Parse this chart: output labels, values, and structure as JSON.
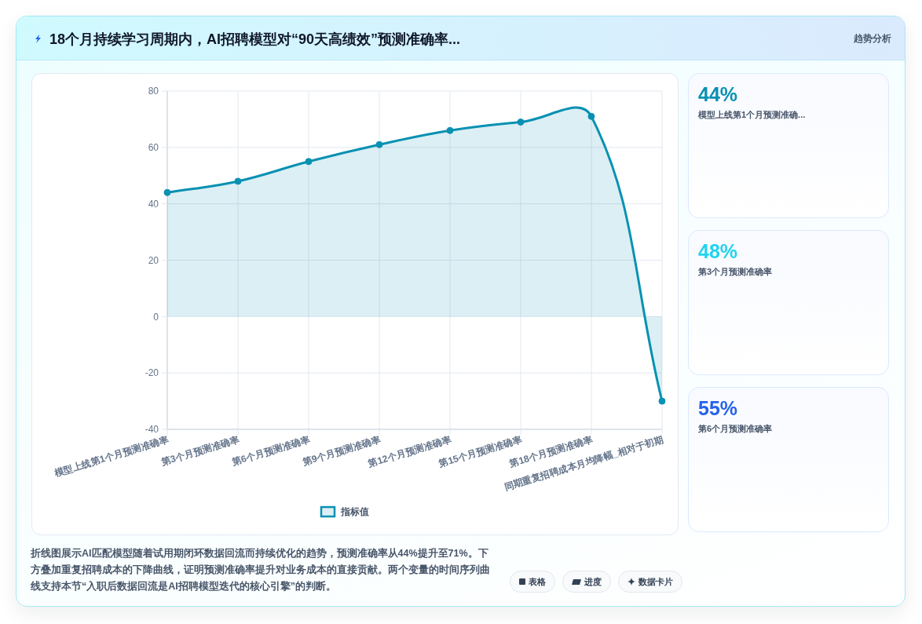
{
  "chart_data": [
    {
      "type": "area",
      "title": "18个月持续学习周期内，AI招聘模型对“90天高绩效”预测准确率...",
      "categories": [
        "模型上线第1个月预测准确率",
        "第3个月预测准确率",
        "第6个月预测准确率",
        "第9个月预测准确率",
        "第12个月预测准确率",
        "第15个月预测准确率",
        "第18个月预测准确率",
        "同期重复招聘成本月均降幅_相对于初期"
      ],
      "series": [
        {
          "name": "指标值",
          "color": "#0891b2",
          "values": [
            44,
            48,
            55,
            61,
            66,
            69,
            71,
            -30
          ]
        }
      ],
      "ylim": [
        -40,
        80
      ],
      "yticks": [
        -40,
        -20,
        0,
        20,
        40,
        60,
        80
      ],
      "grid": true,
      "legend": "bottom",
      "marker": "circle",
      "annotations": [
        "趋势分析",
        "折线图展示AI匹配模型随着试用期闭环数据回流而持续优化的趋势，预测准确率从44%提升至71%。下方叠加重复招聘成本的下降曲线，证明预测准确率提升对业务成本的直接贡献。两个变量的时间序列曲线支持本节“入职后数据回流是AI招聘模型迭代的核心引擎”的判断。",
        "表格",
        "进度",
        "数据卡片"
      ]
    },
    {
      "type": "other",
      "categories": [
        "模型上线第1个月预测准确...",
        "第3个月预测准确率",
        "第6个月预测准确率"
      ],
      "value_labels": [
        "44%",
        "48%",
        "55%"
      ]
    }
  ]
}
